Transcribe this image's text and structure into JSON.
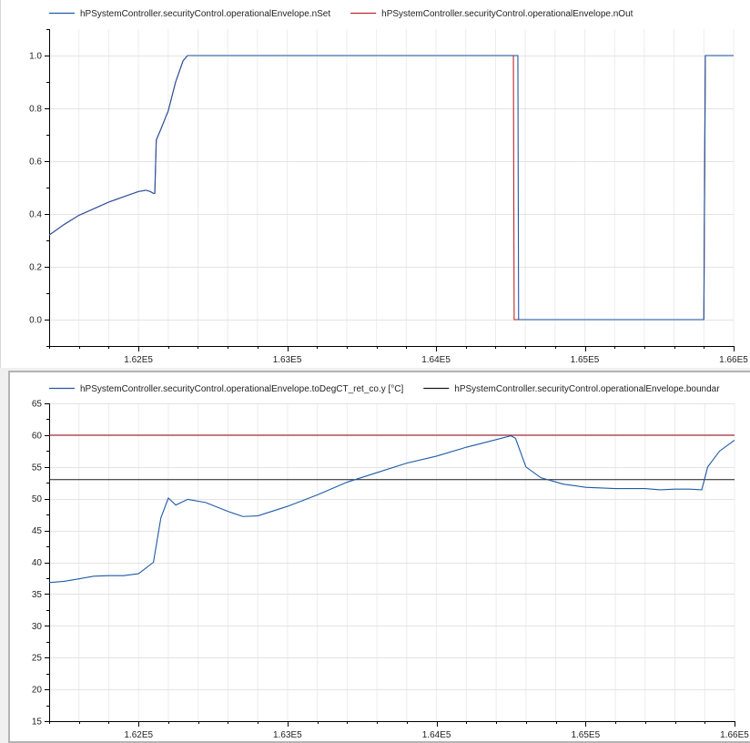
{
  "chart_data": [
    {
      "type": "line",
      "title": "",
      "xlabel": "",
      "ylabel": "",
      "xlim": [
        161400,
        166000
      ],
      "ylim": [
        -0.1,
        1.1
      ],
      "x_ticks": [
        162000,
        163000,
        164000,
        165000,
        166000
      ],
      "x_tick_labels": [
        "1.62E5",
        "1.63E5",
        "1.64E5",
        "1.65E5",
        "1.66E5"
      ],
      "y_ticks": [
        0.0,
        0.2,
        0.4,
        0.6,
        0.8,
        1.0
      ],
      "y_tick_labels": [
        "0.0",
        "0.2",
        "0.4",
        "0.6",
        "0.8",
        "1.0"
      ],
      "grid": true,
      "legend_position": "top",
      "series": [
        {
          "name": "hPSystemController.securityControl.operationalEnvelope.nSet",
          "color": "#1f5aa6",
          "points": [
            [
              161400,
              0.32
            ],
            [
              161500,
              0.36
            ],
            [
              161600,
              0.395
            ],
            [
              161700,
              0.42
            ],
            [
              161800,
              0.445
            ],
            [
              161900,
              0.465
            ],
            [
              162000,
              0.485
            ],
            [
              162050,
              0.49
            ],
            [
              162080,
              0.485
            ],
            [
              162100,
              0.478
            ],
            [
              162110,
              0.478
            ],
            [
              162120,
              0.68
            ],
            [
              162150,
              0.72
            ],
            [
              162200,
              0.79
            ],
            [
              162250,
              0.9
            ],
            [
              162300,
              0.98
            ],
            [
              162330,
              1.0
            ],
            [
              164550,
              1.0
            ],
            [
              164555,
              0.0
            ],
            [
              165800,
              0.0
            ],
            [
              165810,
              1.0
            ],
            [
              166000,
              1.0
            ]
          ]
        },
        {
          "name": "hPSystemController.securityControl.operationalEnvelope.nOut",
          "color": "#c0242a",
          "points": [
            [
              161400,
              0.32
            ],
            [
              161500,
              0.36
            ],
            [
              161600,
              0.395
            ],
            [
              161700,
              0.42
            ],
            [
              161800,
              0.445
            ],
            [
              161900,
              0.465
            ],
            [
              162000,
              0.485
            ],
            [
              162050,
              0.49
            ],
            [
              162080,
              0.485
            ],
            [
              162100,
              0.478
            ],
            [
              162110,
              0.478
            ],
            [
              162120,
              0.68
            ],
            [
              162150,
              0.72
            ],
            [
              162200,
              0.79
            ],
            [
              162250,
              0.9
            ],
            [
              162300,
              0.98
            ],
            [
              162330,
              1.0
            ],
            [
              164520,
              1.0
            ],
            [
              164525,
              0.0
            ],
            [
              165800,
              0.0
            ],
            [
              165810,
              1.0
            ],
            [
              166000,
              1.0
            ]
          ]
        }
      ]
    },
    {
      "type": "line",
      "title": "",
      "xlabel": "",
      "ylabel": "",
      "xlim": [
        161400,
        166000
      ],
      "ylim": [
        15,
        65
      ],
      "x_ticks": [
        162000,
        163000,
        164000,
        165000,
        166000
      ],
      "x_tick_labels": [
        "1.62E5",
        "1.63E5",
        "1.64E5",
        "1.65E5",
        "1.66E5"
      ],
      "y_ticks": [
        15,
        20,
        25,
        30,
        35,
        40,
        45,
        50,
        55,
        60,
        65
      ],
      "y_tick_labels": [
        "15",
        "20",
        "25",
        "30",
        "35",
        "40",
        "45",
        "50",
        "55",
        "60",
        "65"
      ],
      "grid": true,
      "legend_position": "top",
      "series": [
        {
          "name": "hPSystemController.securityControl.operationalEnvelope.toDegCT_ret_co.y [°C]",
          "color": "#1f5aa6",
          "points": [
            [
              161400,
              36.8
            ],
            [
              161500,
              37.0
            ],
            [
              161600,
              37.4
            ],
            [
              161700,
              37.8
            ],
            [
              161800,
              37.9
            ],
            [
              161900,
              37.9
            ],
            [
              162000,
              38.2
            ],
            [
              162100,
              40.0
            ],
            [
              162150,
              47.0
            ],
            [
              162200,
              50.1
            ],
            [
              162250,
              49.0
            ],
            [
              162330,
              49.9
            ],
            [
              162450,
              49.4
            ],
            [
              162600,
              48.0
            ],
            [
              162700,
              47.2
            ],
            [
              162800,
              47.3
            ],
            [
              163000,
              48.8
            ],
            [
              163200,
              50.6
            ],
            [
              163400,
              52.6
            ],
            [
              163600,
              54.1
            ],
            [
              163800,
              55.6
            ],
            [
              164000,
              56.7
            ],
            [
              164200,
              58.1
            ],
            [
              164400,
              59.3
            ],
            [
              164500,
              59.9
            ],
            [
              164530,
              59.5
            ],
            [
              164600,
              55.0
            ],
            [
              164700,
              53.3
            ],
            [
              164850,
              52.3
            ],
            [
              165000,
              51.8
            ],
            [
              165200,
              51.6
            ],
            [
              165400,
              51.6
            ],
            [
              165500,
              51.4
            ],
            [
              165600,
              51.5
            ],
            [
              165700,
              51.5
            ],
            [
              165780,
              51.4
            ],
            [
              165820,
              55.0
            ],
            [
              165900,
              57.5
            ],
            [
              166000,
              59.2
            ]
          ]
        },
        {
          "name": "hPSystemController.securityControl.operationalEnvelope.boundar",
          "color": "#1a1a1a",
          "points": [
            [
              161400,
              53.0
            ],
            [
              166000,
              53.0
            ]
          ]
        },
        {
          "name": "",
          "color": "#a01e28",
          "points": [
            [
              161400,
              60.0
            ],
            [
              166000,
              60.0
            ]
          ]
        }
      ]
    }
  ]
}
